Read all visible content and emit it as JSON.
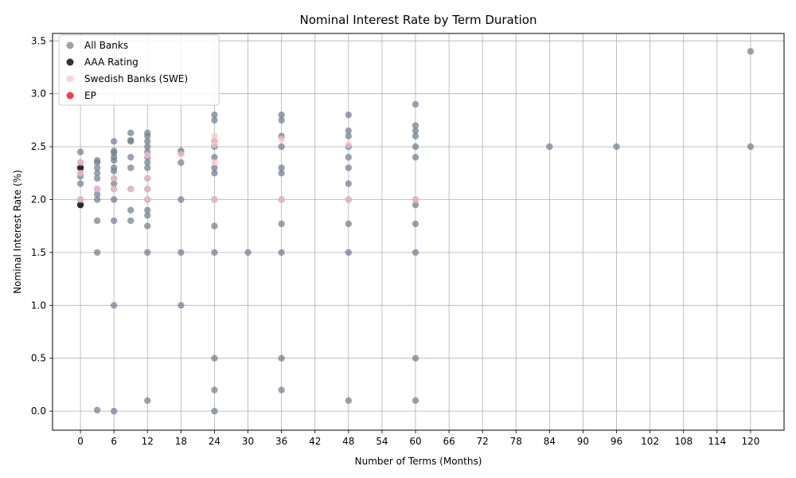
{
  "chart_data": {
    "type": "scatter",
    "title": "Nominal Interest Rate by Term Duration",
    "xlabel": "Number of Terms (Months)",
    "ylabel": "Nominal Interest Rate (%)",
    "xlim": [
      -5,
      126
    ],
    "ylim": [
      -0.18,
      3.57
    ],
    "xticks": [
      0,
      6,
      12,
      18,
      24,
      30,
      36,
      42,
      48,
      54,
      60,
      66,
      72,
      78,
      84,
      90,
      96,
      102,
      108,
      114,
      120
    ],
    "yticks": [
      0.0,
      0.5,
      1.0,
      1.5,
      2.0,
      2.5,
      3.0,
      3.5
    ],
    "grid": true,
    "legend_position": "top-left",
    "series": [
      {
        "name": "All Banks",
        "color": "#708090",
        "legend_color": "#a0a0a0",
        "points": [
          [
            0,
            2.45
          ],
          [
            0,
            2.35
          ],
          [
            0,
            2.3
          ],
          [
            0,
            2.25
          ],
          [
            0,
            2.22
          ],
          [
            0,
            2.15
          ],
          [
            0,
            2.0
          ],
          [
            0,
            1.95
          ],
          [
            3,
            2.37
          ],
          [
            3,
            2.35
          ],
          [
            3,
            2.3
          ],
          [
            3,
            2.25
          ],
          [
            3,
            2.2
          ],
          [
            3,
            2.1
          ],
          [
            3,
            2.05
          ],
          [
            3,
            2.0
          ],
          [
            3,
            1.8
          ],
          [
            3,
            1.5
          ],
          [
            3,
            0.01
          ],
          [
            6,
            2.55
          ],
          [
            6,
            2.46
          ],
          [
            6,
            2.44
          ],
          [
            6,
            2.4
          ],
          [
            6,
            2.37
          ],
          [
            6,
            2.3
          ],
          [
            6,
            2.27
          ],
          [
            6,
            2.2
          ],
          [
            6,
            2.15
          ],
          [
            6,
            2.1
          ],
          [
            6,
            2.0
          ],
          [
            6,
            1.8
          ],
          [
            6,
            1.0
          ],
          [
            6,
            0.0
          ],
          [
            9,
            2.63
          ],
          [
            9,
            2.56
          ],
          [
            9,
            2.55
          ],
          [
            9,
            2.4
          ],
          [
            9,
            2.3
          ],
          [
            9,
            2.1
          ],
          [
            9,
            1.9
          ],
          [
            9,
            1.8
          ],
          [
            12,
            2.63
          ],
          [
            12,
            2.6
          ],
          [
            12,
            2.55
          ],
          [
            12,
            2.5
          ],
          [
            12,
            2.45
          ],
          [
            12,
            2.4
          ],
          [
            12,
            2.35
          ],
          [
            12,
            2.3
          ],
          [
            12,
            2.2
          ],
          [
            12,
            2.1
          ],
          [
            12,
            2.0
          ],
          [
            12,
            1.9
          ],
          [
            12,
            1.85
          ],
          [
            12,
            1.75
          ],
          [
            12,
            1.5
          ],
          [
            12,
            0.1
          ],
          [
            18,
            2.46
          ],
          [
            18,
            2.44
          ],
          [
            18,
            2.35
          ],
          [
            18,
            2.0
          ],
          [
            18,
            1.5
          ],
          [
            18,
            1.0
          ],
          [
            24,
            2.8
          ],
          [
            24,
            2.75
          ],
          [
            24,
            2.55
          ],
          [
            24,
            2.5
          ],
          [
            24,
            2.4
          ],
          [
            24,
            2.3
          ],
          [
            24,
            2.25
          ],
          [
            24,
            2.0
          ],
          [
            24,
            1.75
          ],
          [
            24,
            1.5
          ],
          [
            24,
            0.5
          ],
          [
            24,
            0.2
          ],
          [
            24,
            0.0
          ],
          [
            30,
            1.5
          ],
          [
            36,
            2.8
          ],
          [
            36,
            2.75
          ],
          [
            36,
            2.6
          ],
          [
            36,
            2.5
          ],
          [
            36,
            2.3
          ],
          [
            36,
            2.25
          ],
          [
            36,
            2.0
          ],
          [
            36,
            1.77
          ],
          [
            36,
            1.5
          ],
          [
            36,
            0.5
          ],
          [
            36,
            0.2
          ],
          [
            48,
            2.8
          ],
          [
            48,
            2.65
          ],
          [
            48,
            2.6
          ],
          [
            48,
            2.5
          ],
          [
            48,
            2.4
          ],
          [
            48,
            2.3
          ],
          [
            48,
            2.15
          ],
          [
            48,
            2.0
          ],
          [
            48,
            1.77
          ],
          [
            48,
            1.5
          ],
          [
            48,
            0.1
          ],
          [
            60,
            2.9
          ],
          [
            60,
            2.7
          ],
          [
            60,
            2.65
          ],
          [
            60,
            2.6
          ],
          [
            60,
            2.5
          ],
          [
            60,
            2.4
          ],
          [
            60,
            2.0
          ],
          [
            60,
            1.95
          ],
          [
            60,
            1.77
          ],
          [
            60,
            1.5
          ],
          [
            60,
            0.5
          ],
          [
            60,
            0.1
          ],
          [
            84,
            2.5
          ],
          [
            96,
            2.5
          ],
          [
            120,
            3.4
          ],
          [
            120,
            2.5
          ]
        ]
      },
      {
        "name": "AAA Rating",
        "color": "#000000",
        "legend_color": "#333333",
        "points": [
          [
            0,
            2.3
          ],
          [
            0,
            1.95
          ]
        ]
      },
      {
        "name": "Swedish Banks (SWE)",
        "color": "#ffc0cb",
        "legend_color": "#f6d6d6",
        "points": [
          [
            0,
            2.35
          ],
          [
            0,
            2.25
          ],
          [
            0,
            2.0
          ],
          [
            3,
            2.1
          ],
          [
            6,
            2.2
          ],
          [
            6,
            2.1
          ],
          [
            9,
            2.1
          ],
          [
            12,
            2.42
          ],
          [
            12,
            2.2
          ],
          [
            12,
            2.1
          ],
          [
            12,
            2.0
          ],
          [
            18,
            2.43
          ],
          [
            24,
            2.6
          ],
          [
            24,
            2.55
          ],
          [
            24,
            2.52
          ],
          [
            24,
            2.35
          ],
          [
            24,
            2.0
          ],
          [
            36,
            2.57
          ],
          [
            36,
            2.0
          ],
          [
            48,
            2.52
          ],
          [
            48,
            2.0
          ],
          [
            60,
            2.0
          ]
        ]
      },
      {
        "name": "EP",
        "color": "#ff0000",
        "legend_color": "#f04040",
        "points": []
      }
    ]
  }
}
